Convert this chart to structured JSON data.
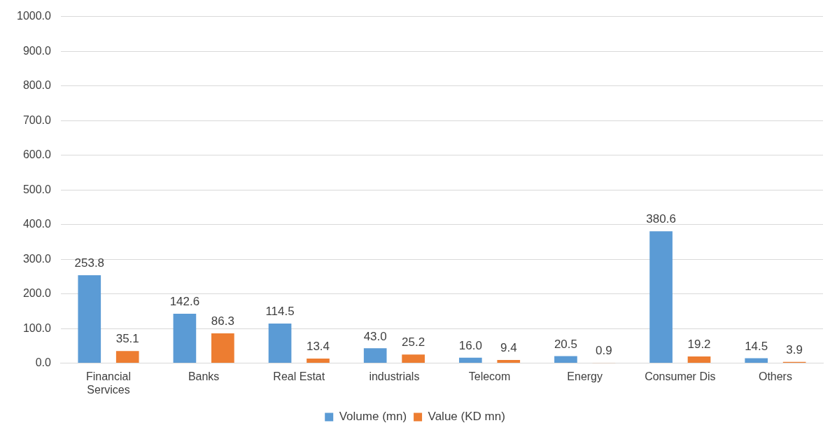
{
  "chart_data": {
    "type": "bar",
    "categories": [
      "Financial Services",
      "Banks",
      "Real Estat",
      "industrials",
      "Telecom",
      "Energy",
      "Consumer Dis",
      "Others"
    ],
    "series": [
      {
        "name": "Volume (mn)",
        "color": "#5b9bd5",
        "values": [
          253.8,
          142.6,
          114.5,
          43.0,
          16.0,
          20.5,
          380.6,
          14.5
        ],
        "value_labels": [
          "253.8",
          "142.6",
          "114.5",
          "43.0",
          "16.0",
          "20.5",
          "380.6",
          "14.5"
        ]
      },
      {
        "name": "Value (KD mn)",
        "color": "#ed7d31",
        "values": [
          35.1,
          86.3,
          13.4,
          25.2,
          9.4,
          0.9,
          19.2,
          3.9
        ],
        "value_labels": [
          "35.1",
          "86.3",
          "13.4",
          "25.2",
          "9.4",
          "0.9",
          "19.2",
          "3.9"
        ]
      }
    ],
    "ylim": [
      0,
      1000
    ],
    "yticks": [
      {
        "value": 0,
        "label": "0.0"
      },
      {
        "value": 100,
        "label": "100.0"
      },
      {
        "value": 200,
        "label": "200.0"
      },
      {
        "value": 300,
        "label": "300.0"
      },
      {
        "value": 400,
        "label": "400.0"
      },
      {
        "value": 500,
        "label": "500.0"
      },
      {
        "value": 600,
        "label": "600.0"
      },
      {
        "value": 700,
        "label": "700.0"
      },
      {
        "value": 800,
        "label": "800.0"
      },
      {
        "value": 900,
        "label": "900.0"
      },
      {
        "value": 1000,
        "label": "1000.0"
      }
    ],
    "grid": "y",
    "legend": "bottom"
  }
}
